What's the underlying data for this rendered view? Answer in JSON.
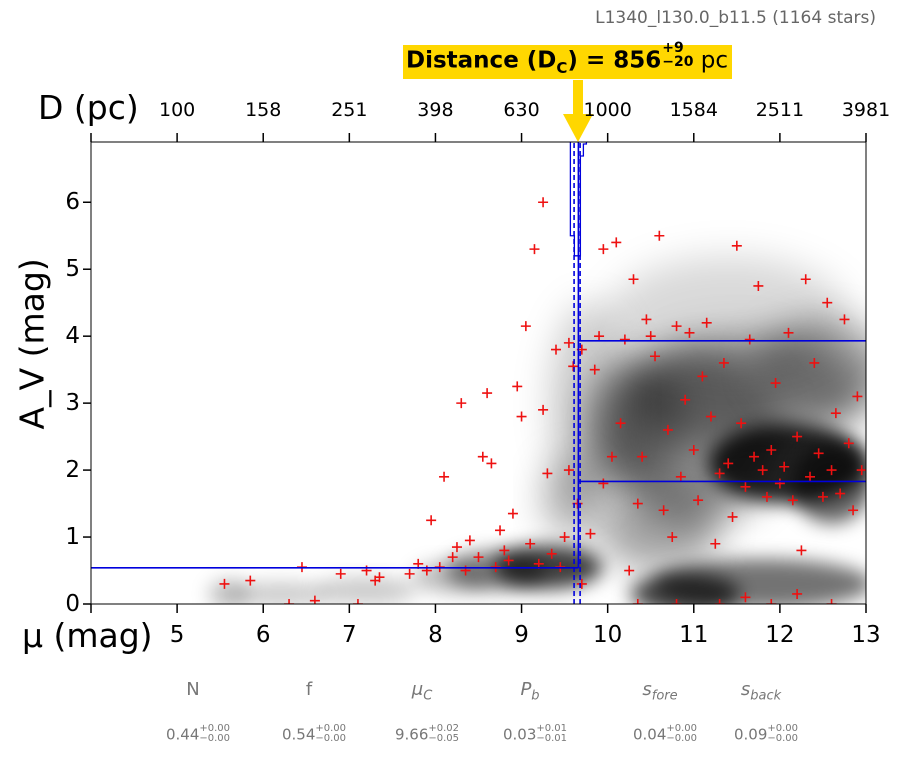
{
  "subtitle": "L1340_l130.0_b11.5 (1164 stars)",
  "callout": {
    "prefix": "Distance (D",
    "subscript": "C",
    "mid": ") = 856",
    "sup": "+9",
    "sub": "−20",
    "unit": " pc",
    "color": "#ffd700"
  },
  "chart_data": {
    "type": "scatter",
    "xlabel": "μ (mag)",
    "ylabel": "A_V (mag)",
    "top_axis_label": "D (pc)",
    "xlim": [
      4,
      13
    ],
    "ylim": [
      0,
      6.9
    ],
    "x_ticks": [
      "5",
      "6",
      "7",
      "8",
      "9",
      "10",
      "11",
      "12",
      "13"
    ],
    "y_ticks": [
      "0",
      "1",
      "2",
      "3",
      "4",
      "5",
      "6"
    ],
    "top_ticks": [
      "100",
      "158",
      "251",
      "398",
      "630",
      "1000",
      "1584",
      "2511",
      "3981"
    ],
    "series": [
      {
        "kind": "stars",
        "marker": "+",
        "color": "#ee1111",
        "points": [
          [
            5.55,
            0.3
          ],
          [
            5.85,
            0.35
          ],
          [
            6.3,
            0.0
          ],
          [
            6.45,
            0.55
          ],
          [
            6.6,
            0.05
          ],
          [
            6.9,
            0.45
          ],
          [
            7.1,
            0.0
          ],
          [
            7.2,
            0.5
          ],
          [
            7.3,
            0.35
          ],
          [
            7.35,
            0.4
          ],
          [
            7.7,
            0.45
          ],
          [
            7.8,
            0.6
          ],
          [
            7.9,
            0.5
          ],
          [
            7.95,
            1.25
          ],
          [
            8.05,
            0.55
          ],
          [
            8.1,
            1.9
          ],
          [
            8.2,
            0.7
          ],
          [
            8.25,
            0.85
          ],
          [
            8.3,
            3.0
          ],
          [
            8.35,
            0.5
          ],
          [
            8.4,
            0.95
          ],
          [
            8.5,
            0.7
          ],
          [
            8.55,
            2.2
          ],
          [
            8.6,
            3.15
          ],
          [
            8.65,
            2.1
          ],
          [
            8.7,
            0.55
          ],
          [
            8.75,
            1.1
          ],
          [
            8.8,
            0.8
          ],
          [
            8.85,
            0.65
          ],
          [
            8.9,
            1.35
          ],
          [
            8.95,
            3.25
          ],
          [
            9.0,
            2.8
          ],
          [
            9.05,
            4.15
          ],
          [
            9.1,
            0.9
          ],
          [
            9.15,
            5.3
          ],
          [
            9.2,
            0.6
          ],
          [
            9.25,
            2.9
          ],
          [
            9.25,
            6.0
          ],
          [
            9.3,
            1.95
          ],
          [
            9.35,
            0.75
          ],
          [
            9.4,
            3.8
          ],
          [
            9.45,
            0.55
          ],
          [
            9.5,
            1.0
          ],
          [
            9.55,
            3.9
          ],
          [
            9.55,
            2.0
          ],
          [
            9.6,
            3.55
          ],
          [
            9.65,
            1.5
          ],
          [
            9.7,
            3.8
          ],
          [
            9.7,
            0.3
          ],
          [
            9.8,
            1.05
          ],
          [
            9.85,
            3.5
          ],
          [
            9.9,
            4.0
          ],
          [
            9.95,
            5.3
          ],
          [
            9.95,
            1.8
          ],
          [
            10.05,
            2.2
          ],
          [
            10.1,
            5.4
          ],
          [
            10.15,
            2.7
          ],
          [
            10.2,
            3.95
          ],
          [
            10.3,
            4.85
          ],
          [
            10.35,
            1.5
          ],
          [
            10.4,
            2.2
          ],
          [
            10.45,
            4.25
          ],
          [
            10.5,
            4.0
          ],
          [
            10.55,
            3.7
          ],
          [
            10.6,
            5.5
          ],
          [
            10.65,
            1.4
          ],
          [
            10.7,
            2.6
          ],
          [
            10.75,
            1.0
          ],
          [
            10.8,
            4.15
          ],
          [
            10.85,
            1.9
          ],
          [
            10.9,
            3.05
          ],
          [
            10.95,
            4.05
          ],
          [
            11.0,
            2.3
          ],
          [
            11.05,
            1.55
          ],
          [
            11.1,
            3.4
          ],
          [
            11.15,
            4.2
          ],
          [
            11.2,
            2.8
          ],
          [
            11.25,
            0.9
          ],
          [
            11.3,
            1.95
          ],
          [
            11.35,
            3.6
          ],
          [
            11.4,
            2.1
          ],
          [
            11.45,
            1.3
          ],
          [
            11.5,
            5.35
          ],
          [
            11.55,
            2.7
          ],
          [
            11.6,
            1.75
          ],
          [
            11.65,
            3.95
          ],
          [
            11.7,
            2.2
          ],
          [
            11.75,
            4.75
          ],
          [
            11.8,
            2.0
          ],
          [
            11.85,
            1.6
          ],
          [
            11.9,
            2.3
          ],
          [
            11.95,
            3.3
          ],
          [
            12.0,
            1.8
          ],
          [
            12.05,
            2.05
          ],
          [
            12.1,
            4.05
          ],
          [
            12.15,
            1.55
          ],
          [
            12.2,
            2.5
          ],
          [
            12.25,
            0.8
          ],
          [
            12.3,
            4.85
          ],
          [
            12.35,
            1.9
          ],
          [
            12.4,
            3.6
          ],
          [
            12.45,
            2.25
          ],
          [
            12.5,
            1.6
          ],
          [
            12.55,
            4.5
          ],
          [
            12.6,
            2.0
          ],
          [
            12.65,
            2.85
          ],
          [
            12.7,
            1.65
          ],
          [
            12.75,
            4.25
          ],
          [
            12.8,
            2.4
          ],
          [
            12.85,
            1.4
          ],
          [
            12.9,
            3.1
          ],
          [
            12.95,
            2.0
          ],
          [
            10.25,
            0.5
          ],
          [
            10.8,
            0.0
          ],
          [
            11.3,
            0.0
          ],
          [
            11.6,
            0.1
          ],
          [
            11.9,
            0.0
          ],
          [
            12.2,
            0.15
          ],
          [
            12.6,
            0.0
          ],
          [
            10.35,
            0.0
          ]
        ]
      }
    ],
    "fit": {
      "mu_c": 9.66,
      "foreground_av": 0.54,
      "background_av_low": 1.83,
      "background_av_high": 3.93,
      "mu_c_lower": 9.61,
      "mu_c_upper": 9.68,
      "line_color": "#0000dd"
    },
    "parameters": [
      {
        "name": "N",
        "value": "0.44",
        "plus": "+0.00",
        "minus": "−0.00",
        "italic": false
      },
      {
        "name": "f",
        "value": "0.54",
        "plus": "+0.00",
        "minus": "−0.00",
        "italic": false
      },
      {
        "name": "μ",
        "sub": "C",
        "value": "9.66",
        "plus": "+0.02",
        "minus": "−0.05",
        "italic": true
      },
      {
        "name": "P",
        "sub": "b",
        "value": "0.03",
        "plus": "+0.01",
        "minus": "−0.01",
        "italic": true
      },
      {
        "name": "s",
        "sub": "fore",
        "value": "0.04",
        "plus": "+0.00",
        "minus": "−0.00",
        "italic": true
      },
      {
        "name": "s",
        "sub": "back",
        "value": "0.09",
        "plus": "+0.00",
        "minus": "−0.00",
        "italic": true
      }
    ]
  }
}
